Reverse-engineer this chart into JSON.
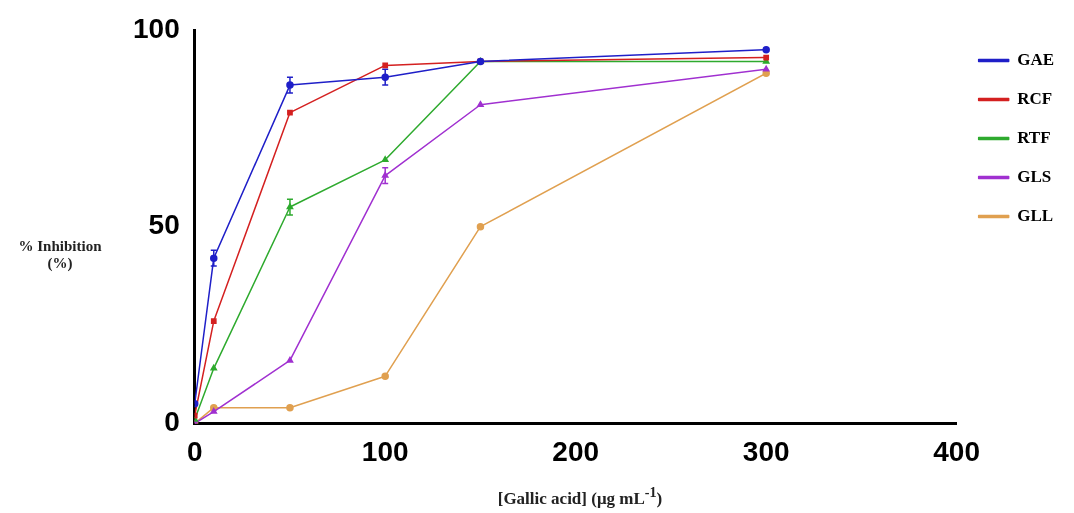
{
  "chart_data": {
    "type": "line",
    "xlabel": "[Gallic acid] (μg mL$^{-1}$)",
    "ylabel": "% Inhibition (%)",
    "xlim": [
      0,
      400
    ],
    "xticks": [
      0,
      100,
      200,
      300,
      400
    ],
    "ylim": [
      0,
      100
    ],
    "yticks": [
      0,
      50,
      100
    ],
    "grid": false,
    "legend": "top right",
    "line_style": "solid",
    "series": [
      {
        "name": "GAE",
        "color": "#1f1fc8",
        "marker": "circle",
        "x": [
          0,
          10,
          50,
          100,
          150,
          300
        ],
        "values": [
          5,
          42,
          86,
          88,
          92,
          95
        ],
        "errors": [
          null,
          2,
          2,
          2,
          null,
          null
        ]
      },
      {
        "name": "RCF",
        "color": "#d42020",
        "marker": "square",
        "x": [
          0,
          10,
          50,
          100,
          150,
          300
        ],
        "values": [
          2,
          26,
          79,
          91,
          92,
          93
        ]
      },
      {
        "name": "RTF",
        "color": "#2eaa2e",
        "marker": "triangle",
        "x": [
          0,
          10,
          50,
          100,
          150,
          300
        ],
        "values": [
          1,
          14,
          55,
          67,
          92,
          92
        ],
        "errors": [
          null,
          null,
          2,
          null,
          null,
          null
        ]
      },
      {
        "name": "GLS",
        "color": "#a030d0",
        "marker": "triangle",
        "x": [
          0,
          10,
          50,
          100,
          150,
          300
        ],
        "values": [
          0,
          3,
          16,
          63,
          81,
          90
        ],
        "errors": [
          null,
          null,
          null,
          2,
          null,
          null
        ]
      },
      {
        "name": "GLL",
        "color": "#e0a050",
        "marker": "circle",
        "x": [
          0,
          10,
          50,
          100,
          150,
          300
        ],
        "values": [
          0,
          4,
          4,
          12,
          50,
          89
        ]
      }
    ]
  }
}
